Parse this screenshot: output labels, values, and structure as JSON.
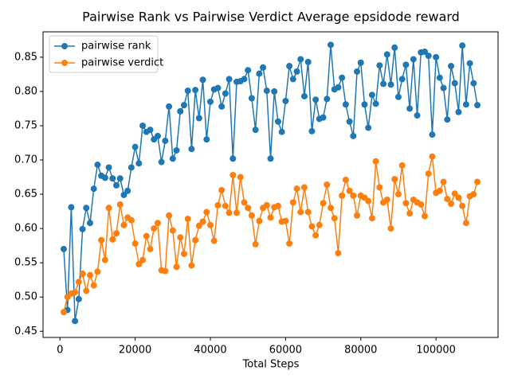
{
  "chart_data": {
    "type": "line",
    "title": "Pairwise Rank vs Pairwise Verdict Average epsidode reward",
    "x_label": "Total Steps",
    "x": [
      1000,
      2000,
      3000,
      4000,
      5000,
      6000,
      7000,
      8000,
      9000,
      10000,
      11000,
      12000,
      13000,
      14000,
      15000,
      16000,
      17000,
      18000,
      19000,
      20000,
      21000,
      22000,
      23000,
      24000,
      25000,
      26000,
      27000,
      28000,
      29000,
      30000,
      31000,
      32000,
      33000,
      34000,
      35000,
      36000,
      37000,
      38000,
      39000,
      40000,
      41000,
      42000,
      43000,
      44000,
      45000,
      46000,
      47000,
      48000,
      49000,
      50000,
      51000,
      52000,
      53000,
      54000,
      55000,
      56000,
      57000,
      58000,
      59000,
      60000,
      61000,
      62000,
      63000,
      64000,
      65000,
      66000,
      67000,
      68000,
      69000,
      70000,
      71000,
      72000,
      73000,
      74000,
      75000,
      76000,
      77000,
      78000,
      79000,
      80000,
      81000,
      82000,
      83000,
      84000,
      85000,
      86000,
      87000,
      88000,
      89000,
      90000,
      91000,
      92000,
      93000,
      94000,
      95000,
      96000,
      97000,
      98000,
      99000,
      100000,
      101000,
      102000,
      103000,
      104000,
      105000,
      106000,
      107000,
      108000,
      109000,
      110000,
      111000
    ],
    "series": [
      {
        "name": "pairwise rank",
        "color": "#1f77b4",
        "values": [
          0.57,
          0.481,
          0.631,
          0.465,
          0.497,
          0.599,
          0.63,
          0.608,
          0.658,
          0.693,
          0.677,
          0.674,
          0.689,
          0.673,
          0.663,
          0.673,
          0.649,
          0.655,
          0.689,
          0.719,
          0.695,
          0.75,
          0.741,
          0.744,
          0.73,
          0.735,
          0.697,
          0.728,
          0.778,
          0.702,
          0.714,
          0.771,
          0.78,
          0.801,
          0.716,
          0.802,
          0.761,
          0.817,
          0.73,
          0.785,
          0.803,
          0.805,
          0.778,
          0.797,
          0.818,
          0.702,
          0.814,
          0.815,
          0.818,
          0.831,
          0.79,
          0.744,
          0.826,
          0.835,
          0.801,
          0.702,
          0.8,
          0.756,
          0.741,
          0.786,
          0.837,
          0.818,
          0.829,
          0.847,
          0.793,
          0.843,
          0.742,
          0.788,
          0.76,
          0.762,
          0.789,
          0.868,
          0.803,
          0.806,
          0.82,
          0.781,
          0.756,
          0.735,
          0.829,
          0.842,
          0.781,
          0.747,
          0.795,
          0.782,
          0.838,
          0.811,
          0.854,
          0.81,
          0.864,
          0.792,
          0.818,
          0.839,
          0.775,
          0.847,
          0.765,
          0.857,
          0.858,
          0.852,
          0.737,
          0.85,
          0.82,
          0.805,
          0.759,
          0.837,
          0.812,
          0.77,
          0.867,
          0.781,
          0.841,
          0.812,
          0.78
        ]
      },
      {
        "name": "pairwise verdict",
        "color": "#ff7f0e",
        "values": [
          0.478,
          0.5,
          0.505,
          0.507,
          0.522,
          0.534,
          0.509,
          0.532,
          0.517,
          0.537,
          0.583,
          0.554,
          0.63,
          0.584,
          0.593,
          0.635,
          0.605,
          0.616,
          0.612,
          0.578,
          0.548,
          0.554,
          0.589,
          0.57,
          0.6,
          0.608,
          0.539,
          0.538,
          0.619,
          0.597,
          0.544,
          0.587,
          0.563,
          0.614,
          0.546,
          0.583,
          0.604,
          0.61,
          0.624,
          0.605,
          0.582,
          0.634,
          0.656,
          0.633,
          0.623,
          0.678,
          0.623,
          0.675,
          0.638,
          0.63,
          0.619,
          0.577,
          0.611,
          0.63,
          0.634,
          0.616,
          0.631,
          0.633,
          0.61,
          0.611,
          0.578,
          0.638,
          0.658,
          0.624,
          0.66,
          0.624,
          0.603,
          0.59,
          0.605,
          0.637,
          0.664,
          0.63,
          0.615,
          0.564,
          0.648,
          0.671,
          0.655,
          0.648,
          0.619,
          0.648,
          0.645,
          0.64,
          0.615,
          0.698,
          0.66,
          0.638,
          0.642,
          0.6,
          0.672,
          0.65,
          0.692,
          0.637,
          0.622,
          0.642,
          0.638,
          0.635,
          0.618,
          0.68,
          0.705,
          0.652,
          0.655,
          0.668,
          0.643,
          0.636,
          0.651,
          0.645,
          0.633,
          0.608,
          0.647,
          0.65,
          0.668
        ]
      }
    ],
    "xlim": [
      -4500,
      116500
    ],
    "xticks": [
      0,
      20000,
      40000,
      60000,
      80000,
      100000
    ],
    "ylim": [
      0.441,
      0.887
    ],
    "yticks": [
      0.45,
      {
        "value": 0.5,
        "label": "0.50"
      },
      0.55,
      {
        "value": 0.6,
        "label": "0.60"
      },
      0.65,
      {
        "value": 0.7,
        "label": "0.70"
      },
      0.75,
      {
        "value": 0.8,
        "label": "0.80"
      },
      0.85
    ],
    "legend": "upper left"
  }
}
